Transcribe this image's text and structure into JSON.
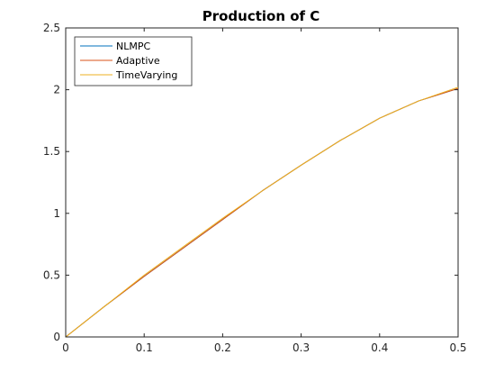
{
  "chart_data": {
    "type": "line",
    "title": "Production of C",
    "xlabel": "",
    "ylabel": "",
    "xlim": [
      0,
      0.5
    ],
    "ylim": [
      0,
      2.5
    ],
    "x_ticks": [
      "0",
      "0.1",
      "0.2",
      "0.3",
      "0.4",
      "0.5"
    ],
    "y_ticks": [
      "0",
      "0.5",
      "1",
      "1.5",
      "2",
      "2.5"
    ],
    "grid": false,
    "legend_position": "top-left",
    "series": [
      {
        "name": "NLMPC",
        "color": "#0072BD",
        "x": [
          0,
          0.05,
          0.1,
          0.15,
          0.2,
          0.25,
          0.3,
          0.35,
          0.4,
          0.45,
          0.5
        ],
        "y": [
          0,
          0.25,
          0.49,
          0.72,
          0.95,
          1.18,
          1.39,
          1.59,
          1.77,
          1.91,
          2.01
        ]
      },
      {
        "name": "Adaptive",
        "color": "#D95319",
        "x": [
          0,
          0.05,
          0.1,
          0.15,
          0.2,
          0.25,
          0.3,
          0.35,
          0.4,
          0.45,
          0.5
        ],
        "y": [
          0,
          0.25,
          0.49,
          0.72,
          0.95,
          1.18,
          1.39,
          1.59,
          1.77,
          1.91,
          2.01
        ]
      },
      {
        "name": "TimeVarying",
        "color": "#EDB120",
        "x": [
          0,
          0.05,
          0.1,
          0.15,
          0.2,
          0.25,
          0.3,
          0.35,
          0.4,
          0.45,
          0.5
        ],
        "y": [
          0,
          0.25,
          0.5,
          0.73,
          0.96,
          1.18,
          1.39,
          1.59,
          1.77,
          1.91,
          2.02
        ]
      }
    ]
  }
}
